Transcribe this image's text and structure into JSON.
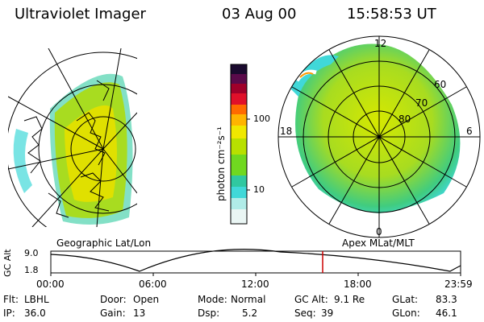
{
  "header": {
    "instrument": "Ultraviolet Imager",
    "date": "03 Aug 00",
    "time": "15:58:53 UT"
  },
  "colorbar": {
    "unit_label": "photon cm⁻²s⁻¹",
    "ticks": [
      "100",
      "10"
    ],
    "colors": [
      "#1a0a2e",
      "#5a0a4a",
      "#a0002a",
      "#e0102a",
      "#ff6a00",
      "#ffb400",
      "#f0e800",
      "#b8e000",
      "#70d820",
      "#30c8a0",
      "#40d8d8",
      "#b0ece8",
      "#eaf6f4"
    ]
  },
  "geo_panel": {
    "caption": "Geographic Lat/Lon"
  },
  "polar_panel": {
    "caption": "Apex MLat/MLT",
    "mlt_labels": {
      "top": "12",
      "left": "18",
      "right": "6",
      "bottom": "0"
    },
    "lat_labels": [
      "60",
      "70",
      "80"
    ]
  },
  "timeline": {
    "ylabel": "GC Alt",
    "yticks": [
      "9.0",
      "1.8"
    ],
    "xticks": [
      "00:00",
      "06:00",
      "12:00",
      "18:00",
      "23:59"
    ],
    "marker_color": "#cc0000"
  },
  "stats": {
    "flt_label": "Flt:",
    "flt_value": "LBHL",
    "door_label": "Door:",
    "door_value": "Open",
    "mode_label": "Mode:",
    "mode_value": "Normal",
    "gcalt_label": "GC Alt:",
    "gcalt_value": "9.1 Re",
    "glat_label": "GLat:",
    "glat_value": "83.3",
    "ip_label": "IP:",
    "ip_value": "36.0",
    "gain_label": "Gain:",
    "gain_value": "13",
    "dsp_label": "Dsp:",
    "dsp_value": "5.2",
    "seq_label": "Seq:",
    "seq_value": "39",
    "glon_label": "GLon:",
    "glon_value": "46.1"
  }
}
